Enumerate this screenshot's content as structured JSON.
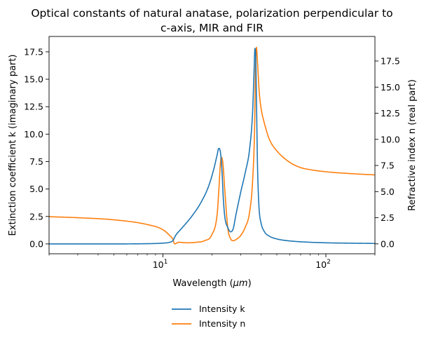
{
  "chart_data": {
    "type": "line",
    "title_line1": "Optical constants of natural anatase, polarization perpendicular to",
    "title_line2": "c-axis, MIR and FIR",
    "xlabel_prefix": "Wavelength (",
    "xlabel_unit": "μm",
    "xlabel_suffix": ")",
    "ylabel_left": "Extinction coefficient k (imaginary part)",
    "ylabel_right": "Refractive index n (real part)",
    "x_scale": "log",
    "xlim": [
      2,
      200
    ],
    "ylim_left": [
      -0.9,
      18.9
    ],
    "ylim_right": [
      -0.95,
      19.85
    ],
    "x_ticks": [
      {
        "value": 10,
        "base": "10",
        "exp": "1"
      },
      {
        "value": 100,
        "base": "10",
        "exp": "2"
      }
    ],
    "y_ticks_left": [
      "0.0",
      "2.5",
      "5.0",
      "7.5",
      "10.0",
      "12.5",
      "15.0",
      "17.5"
    ],
    "y_ticks_right": [
      "0.0",
      "2.5",
      "5.0",
      "7.5",
      "10.0",
      "12.5",
      "15.0",
      "17.5"
    ],
    "legend_position": "below",
    "series": [
      {
        "name": "Intensity k",
        "axis": "left",
        "color": "#1f77b4",
        "x": [
          2,
          3,
          5,
          8,
          10,
          11,
          11.5,
          12,
          13,
          15,
          17,
          19,
          20.5,
          21.5,
          22,
          22.5,
          23,
          23.5,
          24,
          25,
          26,
          27,
          28,
          30,
          32,
          34,
          35.5,
          36.2,
          36.7,
          37,
          37.5,
          38,
          38.5,
          39,
          40,
          42,
          45,
          50,
          60,
          80,
          100,
          150,
          200
        ],
        "y": [
          0.0,
          0.0,
          0.0,
          0.02,
          0.07,
          0.15,
          0.3,
          0.8,
          1.4,
          2.5,
          3.7,
          5.2,
          6.8,
          8.1,
          8.7,
          8.4,
          6.8,
          4.0,
          2.4,
          1.5,
          1.1,
          1.4,
          2.6,
          4.7,
          6.5,
          8.6,
          12.0,
          15.5,
          17.8,
          17.5,
          13.0,
          7.5,
          4.6,
          3.0,
          1.9,
          1.1,
          0.7,
          0.45,
          0.27,
          0.15,
          0.1,
          0.06,
          0.04
        ]
      },
      {
        "name": "Intensity n",
        "axis": "right",
        "color": "#ff7f0e",
        "x": [
          2,
          3,
          5,
          8,
          10,
          11,
          11.5,
          11.8,
          12.5,
          14,
          16,
          18,
          20,
          21.5,
          22,
          22.5,
          22.8,
          23.3,
          24,
          25,
          26,
          27,
          28,
          30,
          32,
          34,
          35.5,
          36.5,
          37,
          37.5,
          38,
          39,
          40,
          42,
          45,
          50,
          60,
          70,
          80,
          100,
          150,
          200
        ],
        "y": [
          2.6,
          2.5,
          2.3,
          1.85,
          1.35,
          0.8,
          0.45,
          0.0,
          0.15,
          0.1,
          0.15,
          0.3,
          0.9,
          2.8,
          5.0,
          7.6,
          8.3,
          7.8,
          5.0,
          1.5,
          0.5,
          0.3,
          0.4,
          0.8,
          1.6,
          3.0,
          6.0,
          11.0,
          17.0,
          18.8,
          17.5,
          14.5,
          13.0,
          11.5,
          10.0,
          8.9,
          7.8,
          7.3,
          7.1,
          6.9,
          6.7,
          6.6
        ]
      }
    ]
  }
}
